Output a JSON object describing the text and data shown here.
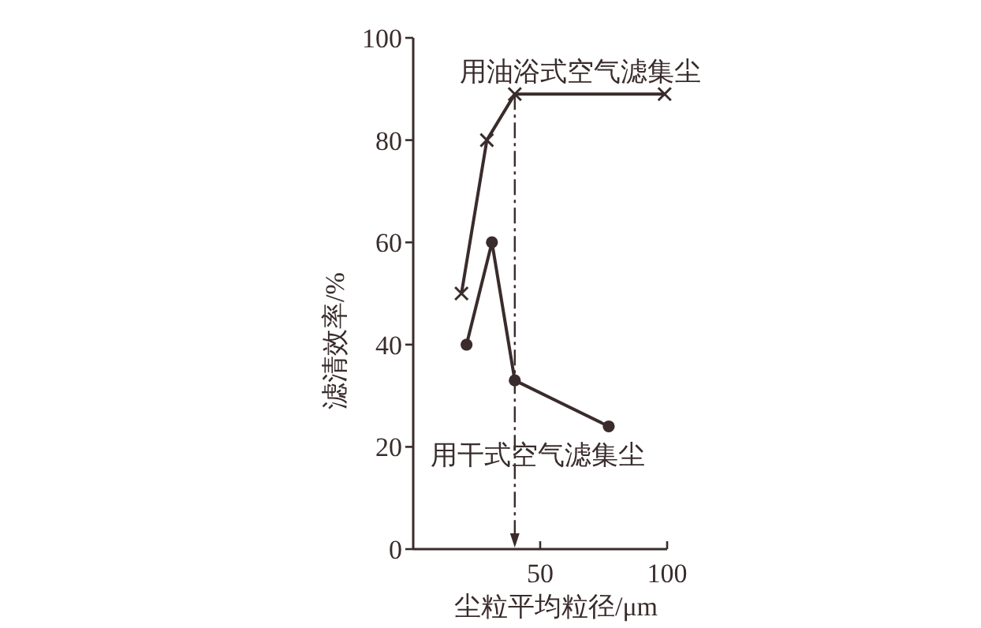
{
  "chart_data": {
    "type": "line",
    "xlabel": "尘粒平均粒径/μm",
    "ylabel": "滤清效率/%",
    "xlim": [
      0,
      100
    ],
    "xticks": [
      50,
      100
    ],
    "ylim": [
      0,
      100
    ],
    "yticks": [
      0,
      20,
      40,
      60,
      80,
      100
    ],
    "series": [
      {
        "name": "用油浴式空气滤集尘",
        "color": "#3a2c2c",
        "marker": "cross",
        "x": [
          19,
          29,
          40,
          99
        ],
        "values": [
          50,
          80,
          89,
          89
        ]
      },
      {
        "name": "用干式空气滤集尘",
        "color": "#3a2c2c",
        "marker": "circle",
        "x": [
          21,
          31,
          40,
          77
        ],
        "values": [
          40,
          60,
          33,
          24
        ]
      }
    ],
    "ref_lines": [
      {
        "axis": "x",
        "value": 40,
        "line_style": "dashdot",
        "color": "#3a2c2c"
      }
    ]
  }
}
